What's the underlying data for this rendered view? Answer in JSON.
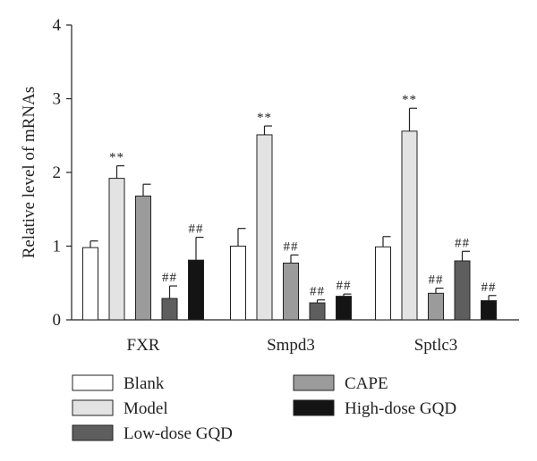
{
  "chart_data": {
    "type": "bar",
    "title": "",
    "xlabel": "",
    "ylabel": "Relative level of mRNAs",
    "ylim": [
      0,
      4
    ],
    "yticks": [
      "0",
      "1",
      "2",
      "3",
      "4"
    ],
    "categories": [
      "FXR",
      "Smpd3",
      "Sptlc3"
    ],
    "series": [
      {
        "name": "Blank",
        "color": "#ffffff",
        "values": [
          0.98,
          1.0,
          0.99
        ],
        "errors": [
          0.09,
          0.24,
          0.14
        ],
        "annotations": [
          "",
          "",
          ""
        ]
      },
      {
        "name": "Model",
        "color": "#e3e3e3",
        "values": [
          1.92,
          2.51,
          2.56
        ],
        "errors": [
          0.17,
          0.12,
          0.31
        ],
        "annotations": [
          "**",
          "**",
          "**"
        ]
      },
      {
        "name": "CAPE",
        "color": "#9b9b9b",
        "values": [
          1.68,
          0.77,
          0.36
        ],
        "errors": [
          0.16,
          0.11,
          0.07
        ],
        "annotations": [
          "",
          "##",
          "##"
        ]
      },
      {
        "name": "Low-dose GQD",
        "color": "#5e5e5e",
        "values": [
          0.29,
          0.23,
          0.8
        ],
        "errors": [
          0.17,
          0.04,
          0.13
        ],
        "annotations": [
          "##",
          "##",
          "##"
        ]
      },
      {
        "name": "High-dose GQD",
        "color": "#141414",
        "values": [
          0.81,
          0.32,
          0.26
        ],
        "errors": [
          0.31,
          0.03,
          0.07
        ],
        "annotations": [
          "##",
          "##",
          "##"
        ]
      }
    ],
    "legend": {
      "position": "bottom",
      "order": [
        "Blank",
        "CAPE",
        "Model",
        "High-dose GQD",
        "Low-dose GQD"
      ]
    },
    "grid": false
  }
}
